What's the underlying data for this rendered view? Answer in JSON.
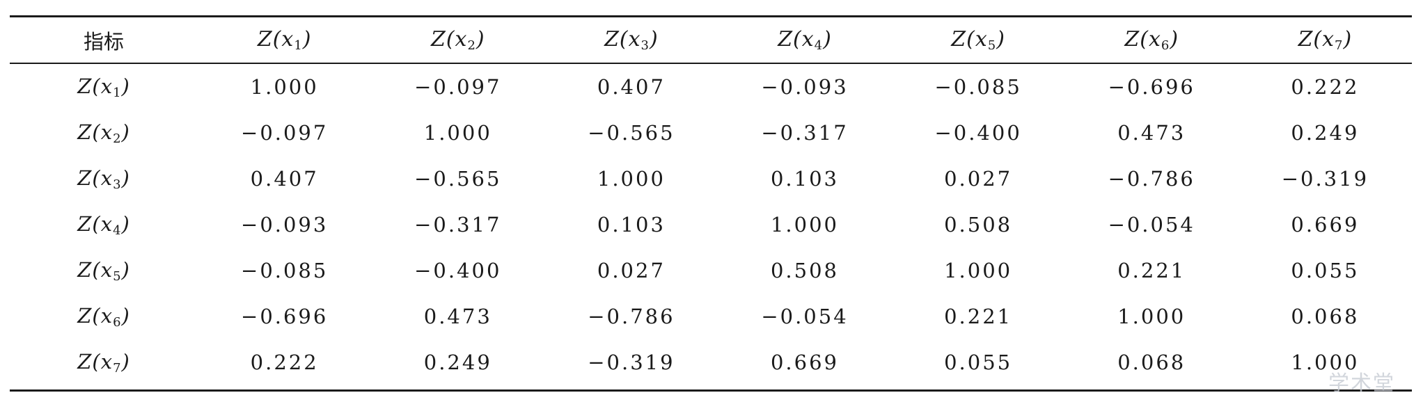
{
  "table": {
    "header": {
      "first": "指标",
      "cols": [
        {
          "base": "Z(x",
          "sub": "1",
          "close": ")"
        },
        {
          "base": "Z(x",
          "sub": "2",
          "close": ")"
        },
        {
          "base": "Z(x",
          "sub": "3",
          "close": ")"
        },
        {
          "base": "Z(x",
          "sub": "4",
          "close": ")"
        },
        {
          "base": "Z(x",
          "sub": "5",
          "close": ")"
        },
        {
          "base": "Z(x",
          "sub": "6",
          "close": ")"
        },
        {
          "base": "Z(x",
          "sub": "7",
          "close": ")"
        }
      ]
    },
    "rows": [
      {
        "label": {
          "base": "Z(x",
          "sub": "1",
          "close": ")"
        },
        "values": [
          "1.000",
          "−0.097",
          "0.407",
          "−0.093",
          "−0.085",
          "−0.696",
          "0.222"
        ]
      },
      {
        "label": {
          "base": "Z(x",
          "sub": "2",
          "close": ")"
        },
        "values": [
          "−0.097",
          "1.000",
          "−0.565",
          "−0.317",
          "−0.400",
          "0.473",
          "0.249"
        ]
      },
      {
        "label": {
          "base": "Z(x",
          "sub": "3",
          "close": ")"
        },
        "values": [
          "0.407",
          "−0.565",
          "1.000",
          "0.103",
          "0.027",
          "−0.786",
          "−0.319"
        ]
      },
      {
        "label": {
          "base": "Z(x",
          "sub": "4",
          "close": ")"
        },
        "values": [
          "−0.093",
          "−0.317",
          "0.103",
          "1.000",
          "0.508",
          "−0.054",
          "0.669"
        ]
      },
      {
        "label": {
          "base": "Z(x",
          "sub": "5",
          "close": ")"
        },
        "values": [
          "−0.085",
          "−0.400",
          "0.027",
          "0.508",
          "1.000",
          "0.221",
          "0.055"
        ]
      },
      {
        "label": {
          "base": "Z(x",
          "sub": "6",
          "close": ")"
        },
        "values": [
          "−0.696",
          "0.473",
          "−0.786",
          "−0.054",
          "0.221",
          "1.000",
          "0.068"
        ]
      },
      {
        "label": {
          "base": "Z(x",
          "sub": "7",
          "close": ")"
        },
        "values": [
          "0.222",
          "0.249",
          "−0.319",
          "0.669",
          "0.055",
          "0.068",
          "1.000"
        ]
      }
    ]
  },
  "watermark": "学术堂"
}
